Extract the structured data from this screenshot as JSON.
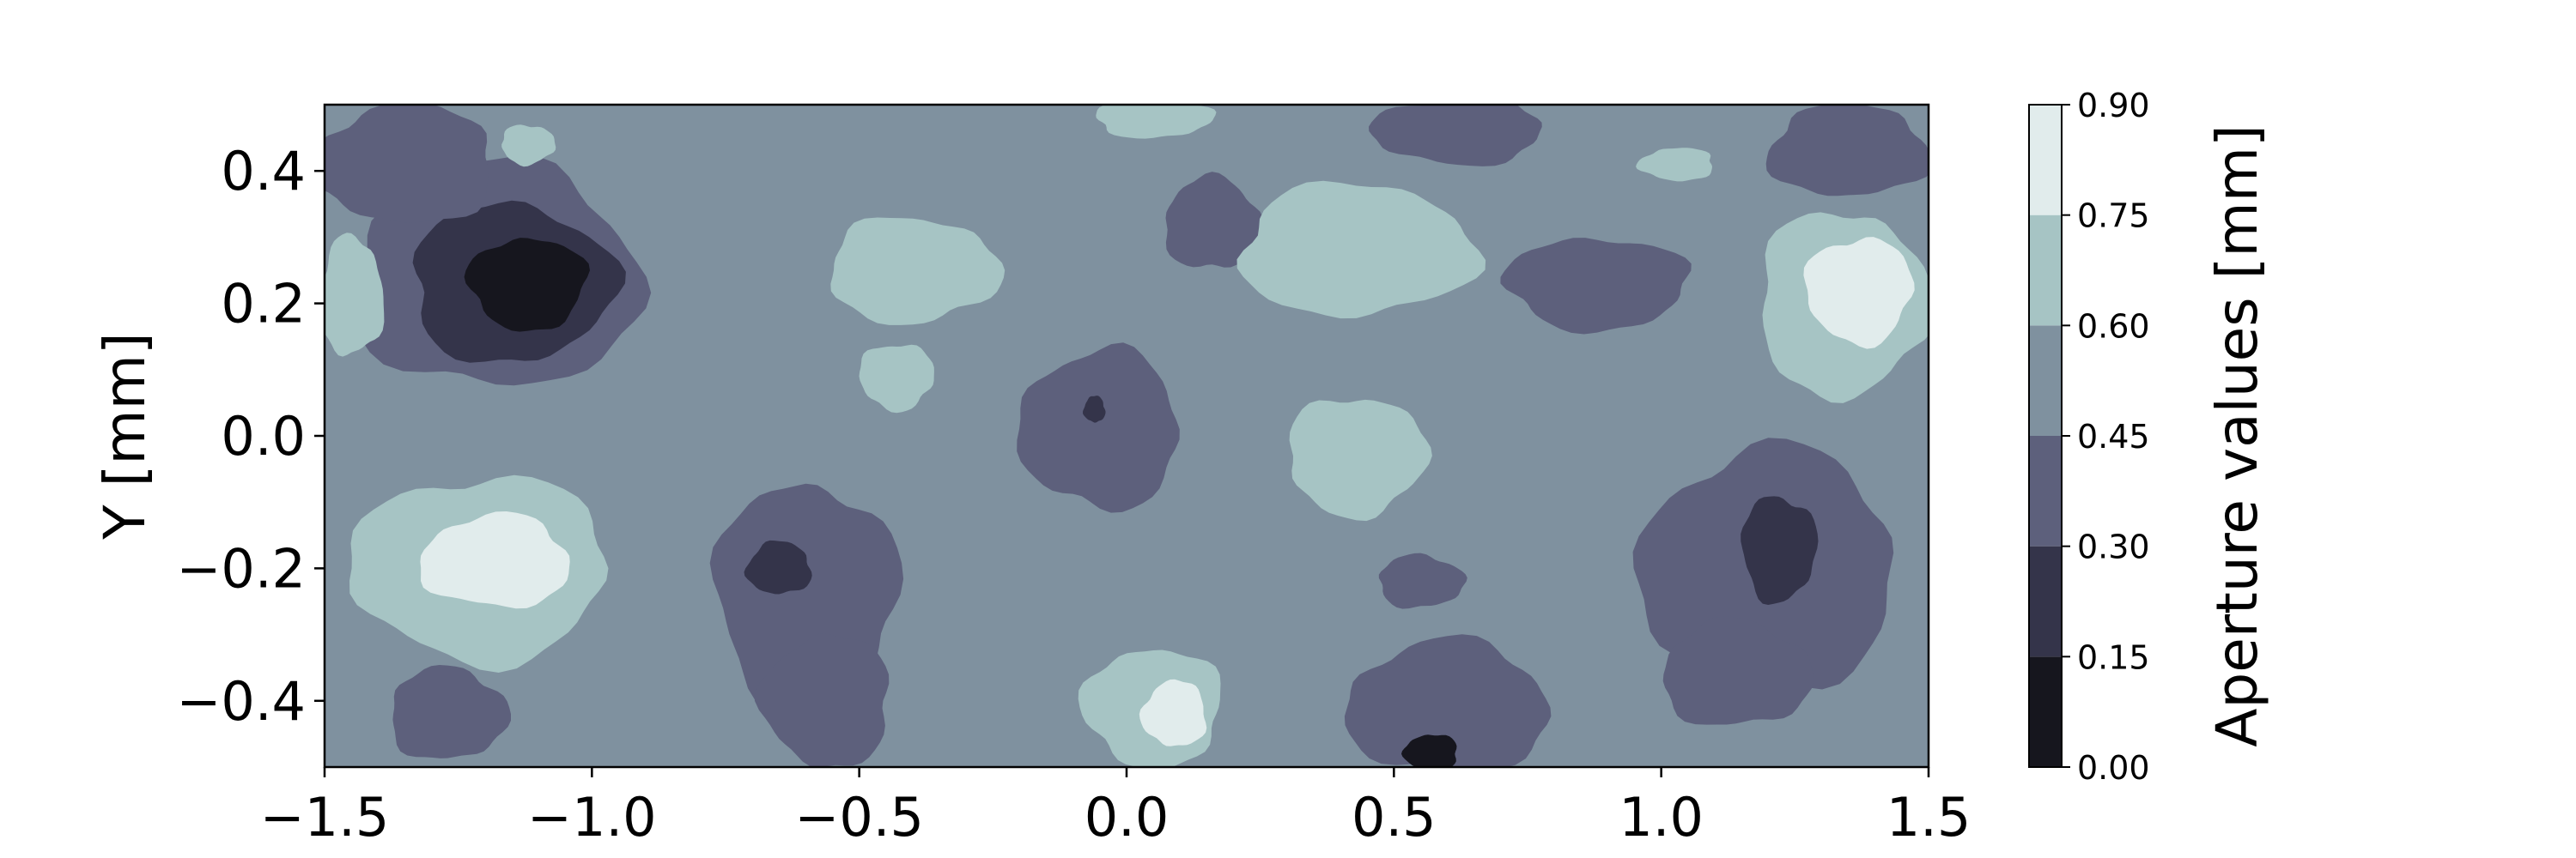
{
  "chart_data": {
    "type": "contour",
    "title": "",
    "xlabel": "",
    "ylabel": "Y [mm]",
    "xlim": [
      -1.5,
      1.5
    ],
    "ylim": [
      -0.5,
      0.5
    ],
    "x_ticks": [
      -1.5,
      -1.0,
      -0.5,
      0.0,
      0.5,
      1.0,
      1.5
    ],
    "x_tick_labels": [
      "−1.5",
      "−1.0",
      "−0.5",
      "0.0",
      "0.5",
      "1.0",
      "1.5"
    ],
    "y_ticks": [
      -0.4,
      -0.2,
      0.0,
      0.2,
      0.4
    ],
    "y_tick_labels": [
      "−0.4",
      "−0.2",
      "0.0",
      "0.2",
      "0.4"
    ],
    "grid": false,
    "colorbar": {
      "label": "Aperture values [mm]",
      "levels": [
        0.0,
        0.15,
        0.3,
        0.45,
        0.6,
        0.75,
        0.9
      ],
      "level_labels": [
        "0.00",
        "0.15",
        "0.30",
        "0.45",
        "0.60",
        "0.75",
        "0.90"
      ],
      "colors": [
        "#16161e",
        "#34344a",
        "#5d607c",
        "#7f919f",
        "#a6c4c4",
        "#e1ecec"
      ]
    },
    "background_level_value": 0.525,
    "regions": [
      {
        "value": 0.375,
        "x": -1.18,
        "y": 0.24,
        "rx": 0.27,
        "ry": 0.17
      },
      {
        "value": 0.225,
        "x": -1.15,
        "y": 0.23,
        "rx": 0.19,
        "ry": 0.12
      },
      {
        "value": 0.075,
        "x": -1.12,
        "y": 0.23,
        "rx": 0.11,
        "ry": 0.07
      },
      {
        "value": 0.375,
        "x": -1.35,
        "y": 0.41,
        "rx": 0.17,
        "ry": 0.09
      },
      {
        "value": 0.675,
        "x": -1.45,
        "y": 0.21,
        "rx": 0.06,
        "ry": 0.09
      },
      {
        "value": 0.675,
        "x": -1.12,
        "y": 0.44,
        "rx": 0.05,
        "ry": 0.03
      },
      {
        "value": 0.675,
        "x": -1.21,
        "y": -0.2,
        "rx": 0.24,
        "ry": 0.14
      },
      {
        "value": 0.825,
        "x": -1.18,
        "y": -0.19,
        "rx": 0.14,
        "ry": 0.07
      },
      {
        "value": 0.375,
        "x": -1.27,
        "y": -0.42,
        "rx": 0.11,
        "ry": 0.07
      },
      {
        "value": 0.375,
        "x": -0.6,
        "y": -0.24,
        "rx": 0.17,
        "ry": 0.17
      },
      {
        "value": 0.375,
        "x": -0.56,
        "y": -0.4,
        "rx": 0.12,
        "ry": 0.1
      },
      {
        "value": 0.225,
        "x": -0.65,
        "y": -0.2,
        "rx": 0.06,
        "ry": 0.04
      },
      {
        "value": 0.675,
        "x": -0.4,
        "y": 0.25,
        "rx": 0.16,
        "ry": 0.08
      },
      {
        "value": 0.675,
        "x": -0.43,
        "y": 0.09,
        "rx": 0.07,
        "ry": 0.05
      },
      {
        "value": 0.375,
        "x": -0.05,
        "y": 0.01,
        "rx": 0.15,
        "ry": 0.12
      },
      {
        "value": 0.375,
        "x": 0.16,
        "y": 0.32,
        "rx": 0.09,
        "ry": 0.07
      },
      {
        "value": 0.675,
        "x": 0.05,
        "y": 0.48,
        "rx": 0.11,
        "ry": 0.03
      },
      {
        "value": 0.675,
        "x": 0.05,
        "y": -0.41,
        "rx": 0.13,
        "ry": 0.09
      },
      {
        "value": 0.825,
        "x": 0.09,
        "y": -0.42,
        "rx": 0.06,
        "ry": 0.05
      },
      {
        "value": 0.675,
        "x": 0.43,
        "y": 0.28,
        "rx": 0.22,
        "ry": 0.1
      },
      {
        "value": 0.675,
        "x": 0.43,
        "y": -0.03,
        "rx": 0.13,
        "ry": 0.09
      },
      {
        "value": 0.375,
        "x": 0.62,
        "y": 0.46,
        "rx": 0.16,
        "ry": 0.05
      },
      {
        "value": 0.375,
        "x": 0.6,
        "y": -0.41,
        "rx": 0.19,
        "ry": 0.1
      },
      {
        "value": 0.375,
        "x": 0.55,
        "y": -0.22,
        "rx": 0.08,
        "ry": 0.04
      },
      {
        "value": 0.375,
        "x": 0.88,
        "y": 0.23,
        "rx": 0.17,
        "ry": 0.07
      },
      {
        "value": 0.675,
        "x": 1.03,
        "y": 0.41,
        "rx": 0.07,
        "ry": 0.025
      },
      {
        "value": 0.375,
        "x": 1.35,
        "y": 0.43,
        "rx": 0.15,
        "ry": 0.07
      },
      {
        "value": 0.675,
        "x": 1.34,
        "y": 0.2,
        "rx": 0.16,
        "ry": 0.14
      },
      {
        "value": 0.825,
        "x": 1.37,
        "y": 0.22,
        "rx": 0.1,
        "ry": 0.08
      },
      {
        "value": 0.375,
        "x": 1.2,
        "y": -0.2,
        "rx": 0.24,
        "ry": 0.18
      },
      {
        "value": 0.375,
        "x": 1.14,
        "y": -0.36,
        "rx": 0.14,
        "ry": 0.08
      },
      {
        "value": 0.225,
        "x": 1.22,
        "y": -0.17,
        "rx": 0.07,
        "ry": 0.08
      },
      {
        "value": 0.075,
        "x": 0.57,
        "y": -0.48,
        "rx": 0.05,
        "ry": 0.03
      },
      {
        "value": 0.225,
        "x": -0.06,
        "y": 0.04,
        "rx": 0.02,
        "ry": 0.02
      }
    ]
  }
}
